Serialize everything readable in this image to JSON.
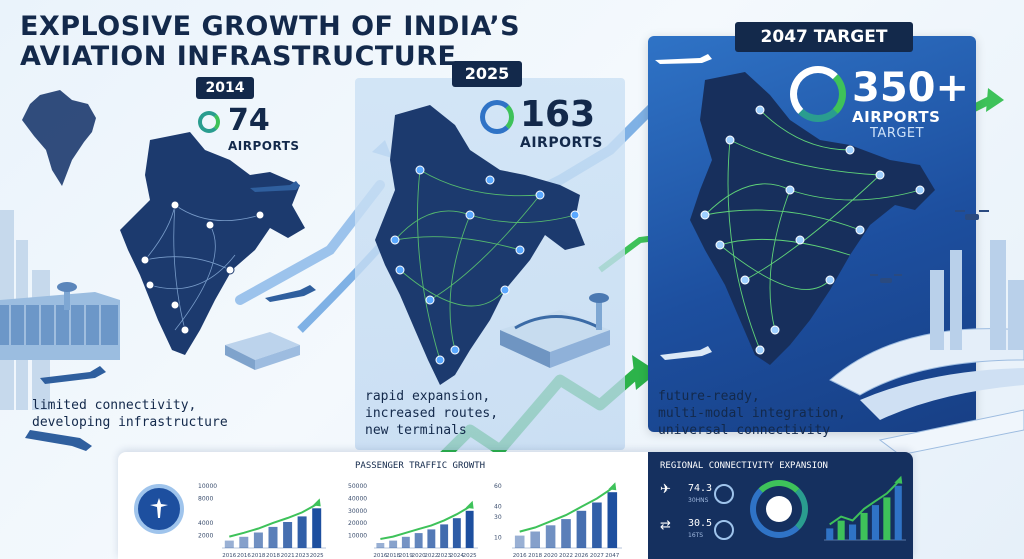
{
  "title": {
    "line1": "EXPLOSIVE GROWTH OF INDIA’S",
    "line2": "AVIATION INFRASTRUCTURE"
  },
  "eras": [
    {
      "year": "2014",
      "count": "74",
      "label": "AIRPORTS",
      "description": [
        "limited connectivity,",
        "developing infrastructure"
      ]
    },
    {
      "year": "2025",
      "count": "163",
      "label": "AIRPORTS",
      "description": [
        "rapid expansion,",
        "increased routes,",
        "new terminals"
      ]
    },
    {
      "year": "2047 TARGET",
      "count": "350+",
      "label": "AIRPORTS",
      "sublabel": "TARGET",
      "description": [
        "future-ready,",
        "multi-modal integration,",
        "universal connectivity"
      ]
    }
  ],
  "dashboard": {
    "passenger_title": "PASSENGER TRAFFIC GROWTH",
    "regional_title": "REGIONAL CONNECTIVITY EXPANSION",
    "charts": [
      {
        "type": "bar",
        "y_ticks": [
          "10000",
          "8000",
          "4000",
          "2000"
        ],
        "categories": [
          "2016",
          "2016",
          "2018",
          "2018",
          "2021",
          "2023",
          "2025"
        ],
        "values": [
          1200,
          1800,
          2500,
          3400,
          4200,
          5100,
          6400
        ],
        "ylim": [
          0,
          10000
        ]
      },
      {
        "type": "bar",
        "y_ticks": [
          "50000",
          "40000",
          "30000",
          "20000",
          "10000"
        ],
        "categories": [
          "2016",
          "2018",
          "2019",
          "2020",
          "2022",
          "2023",
          "2024",
          "2025"
        ],
        "values": [
          4000,
          6000,
          9000,
          12000,
          15000,
          19000,
          24000,
          30000
        ],
        "ylim": [
          0,
          50000
        ]
      },
      {
        "type": "bar",
        "y_ticks": [
          "60",
          "40",
          "30",
          "10"
        ],
        "categories": [
          "2016",
          "2018",
          "2020",
          "2022",
          "2026",
          "2027",
          "2047"
        ],
        "values": [
          12,
          16,
          22,
          28,
          36,
          44,
          54
        ],
        "ylim": [
          0,
          60
        ]
      },
      {
        "type": "bar",
        "categories": [
          "",
          "",
          "",
          "",
          "",
          "",
          ""
        ],
        "values": [
          3,
          5,
          4,
          7,
          9,
          11,
          14
        ],
        "ylim": [
          0,
          16
        ]
      }
    ],
    "stat1": {
      "value": "74.3",
      "unit": "30HNS"
    },
    "stat2": {
      "value": "30.5",
      "unit": "16TS"
    }
  },
  "colors": {
    "navy": "#13294b",
    "accent_green": "#3ec25a",
    "accent_blue": "#2f73c6",
    "map_dark": "#1c3a6e"
  },
  "icons": [
    "airplane-icon",
    "airport-terminal-icon",
    "drone-icon",
    "train-icon",
    "control-tower-icon",
    "growth-arrow-icon"
  ]
}
